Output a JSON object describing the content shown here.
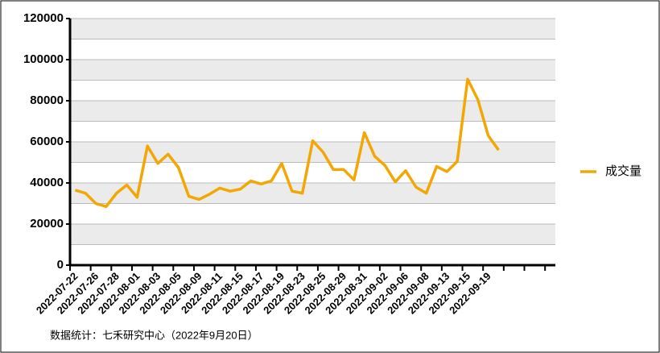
{
  "chart_data": {
    "type": "line",
    "categories": [
      "2022-07-22",
      null,
      "2022-07-26",
      null,
      "2022-07-28",
      null,
      "2022-08-01",
      null,
      "2022-08-03",
      null,
      "2022-08-05",
      null,
      "2022-08-09",
      null,
      "2022-08-11",
      null,
      "2022-08-15",
      null,
      "2022-08-17",
      null,
      "2022-08-19",
      null,
      "2022-08-23",
      null,
      "2022-08-25",
      null,
      "2022-08-29",
      null,
      "2022-08-31",
      null,
      "2022-09-02",
      null,
      "2022-09-06",
      null,
      "2022-09-08",
      null,
      "2022-09-13",
      null,
      "2022-09-15",
      null,
      "2022-09-19",
      null,
      null,
      null,
      null,
      null,
      null
    ],
    "series": [
      {
        "name": "成交量",
        "color": "#f2a705",
        "values": [
          36500,
          35000,
          30000,
          28500,
          35000,
          39000,
          33000,
          58000,
          49500,
          54000,
          47500,
          33500,
          32000,
          34500,
          37500,
          36000,
          37000,
          41000,
          39500,
          41000,
          49500,
          36000,
          35000,
          60500,
          55000,
          46500,
          46500,
          41500,
          64500,
          53000,
          48500,
          40500,
          46000,
          38000,
          35000,
          48000,
          45500,
          50500,
          90500,
          80500,
          63000,
          56000,
          null,
          null,
          null,
          null,
          null
        ]
      }
    ],
    "ylim": [
      0,
      120000
    ],
    "yticks": [
      0,
      20000,
      40000,
      60000,
      80000,
      100000,
      120000
    ],
    "grid": true,
    "grid_step": 10000,
    "alternating_bands": true,
    "band_color": "#ebebeb",
    "legend": "right",
    "source": "数据统计：七禾研究中心（2022年9月20日）"
  }
}
